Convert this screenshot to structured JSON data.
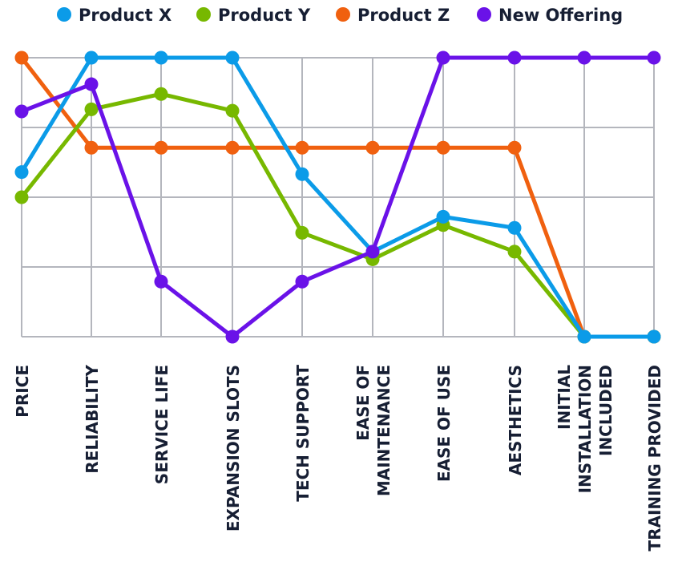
{
  "chart_data": {
    "type": "line",
    "title": "",
    "xlabel": "",
    "ylabel": "",
    "ylim": [
      0,
      4
    ],
    "grid": true,
    "legend_position": "top",
    "categories": [
      [
        "PRICE"
      ],
      [
        "RELIABILITY"
      ],
      [
        "SERVICE LIFE"
      ],
      [
        "EXPANSION SLOTS"
      ],
      [
        "TECH SUPPORT"
      ],
      [
        "EASE OF",
        "MAINTENANCE"
      ],
      [
        "EASE OF USE"
      ],
      [
        "AESTHETICS"
      ],
      [
        "INITIAL",
        "INSTALLATION",
        "INCLUDED"
      ],
      [
        "TRAINING PROVIDED"
      ]
    ],
    "series": [
      {
        "name": "Product Z",
        "color": "#f0600f",
        "values": [
          4,
          2.71,
          2.71,
          2.71,
          2.71,
          2.71,
          2.71,
          2.71,
          0,
          0
        ]
      },
      {
        "name": "Product Y",
        "color": "#77b800",
        "values": [
          2.0,
          3.26,
          3.48,
          3.24,
          1.49,
          1.11,
          1.6,
          1.22,
          0,
          0
        ]
      },
      {
        "name": "Product X",
        "color": "#0b9be8",
        "values": [
          2.36,
          4,
          4,
          4,
          2.33,
          1.22,
          1.72,
          1.56,
          0,
          0
        ]
      },
      {
        "name": "New Offering",
        "color": "#6a12e8",
        "values": [
          3.23,
          3.62,
          0.79,
          0,
          0.79,
          1.22,
          4,
          4,
          4,
          4
        ]
      }
    ],
    "legend_order": [
      "Product X",
      "Product Y",
      "Product Z",
      "New Offering"
    ]
  }
}
